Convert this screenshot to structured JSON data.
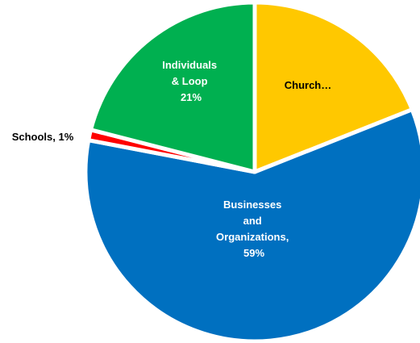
{
  "chart_data": {
    "type": "pie",
    "title": "",
    "slices": [
      {
        "label": "Church",
        "value": 19,
        "color": "#FFC800",
        "label_lines": [
          "Church…"
        ]
      },
      {
        "label": "Businesses and Organizations",
        "value": 59,
        "color": "#0070C0",
        "label_lines": [
          "Businesses",
          "and",
          "Organizations,",
          "59%"
        ]
      },
      {
        "label": "Schools",
        "value": 1,
        "color": "#FF0000",
        "label_lines": [
          "Schools, 1%"
        ]
      },
      {
        "label": "Individuals & Loop",
        "value": 21,
        "color": "#00B050",
        "label_lines": [
          "Individuals",
          "& Loop",
          "21%"
        ]
      }
    ],
    "start_angle_deg": 0,
    "direction": "clockwise",
    "legend": "none"
  }
}
